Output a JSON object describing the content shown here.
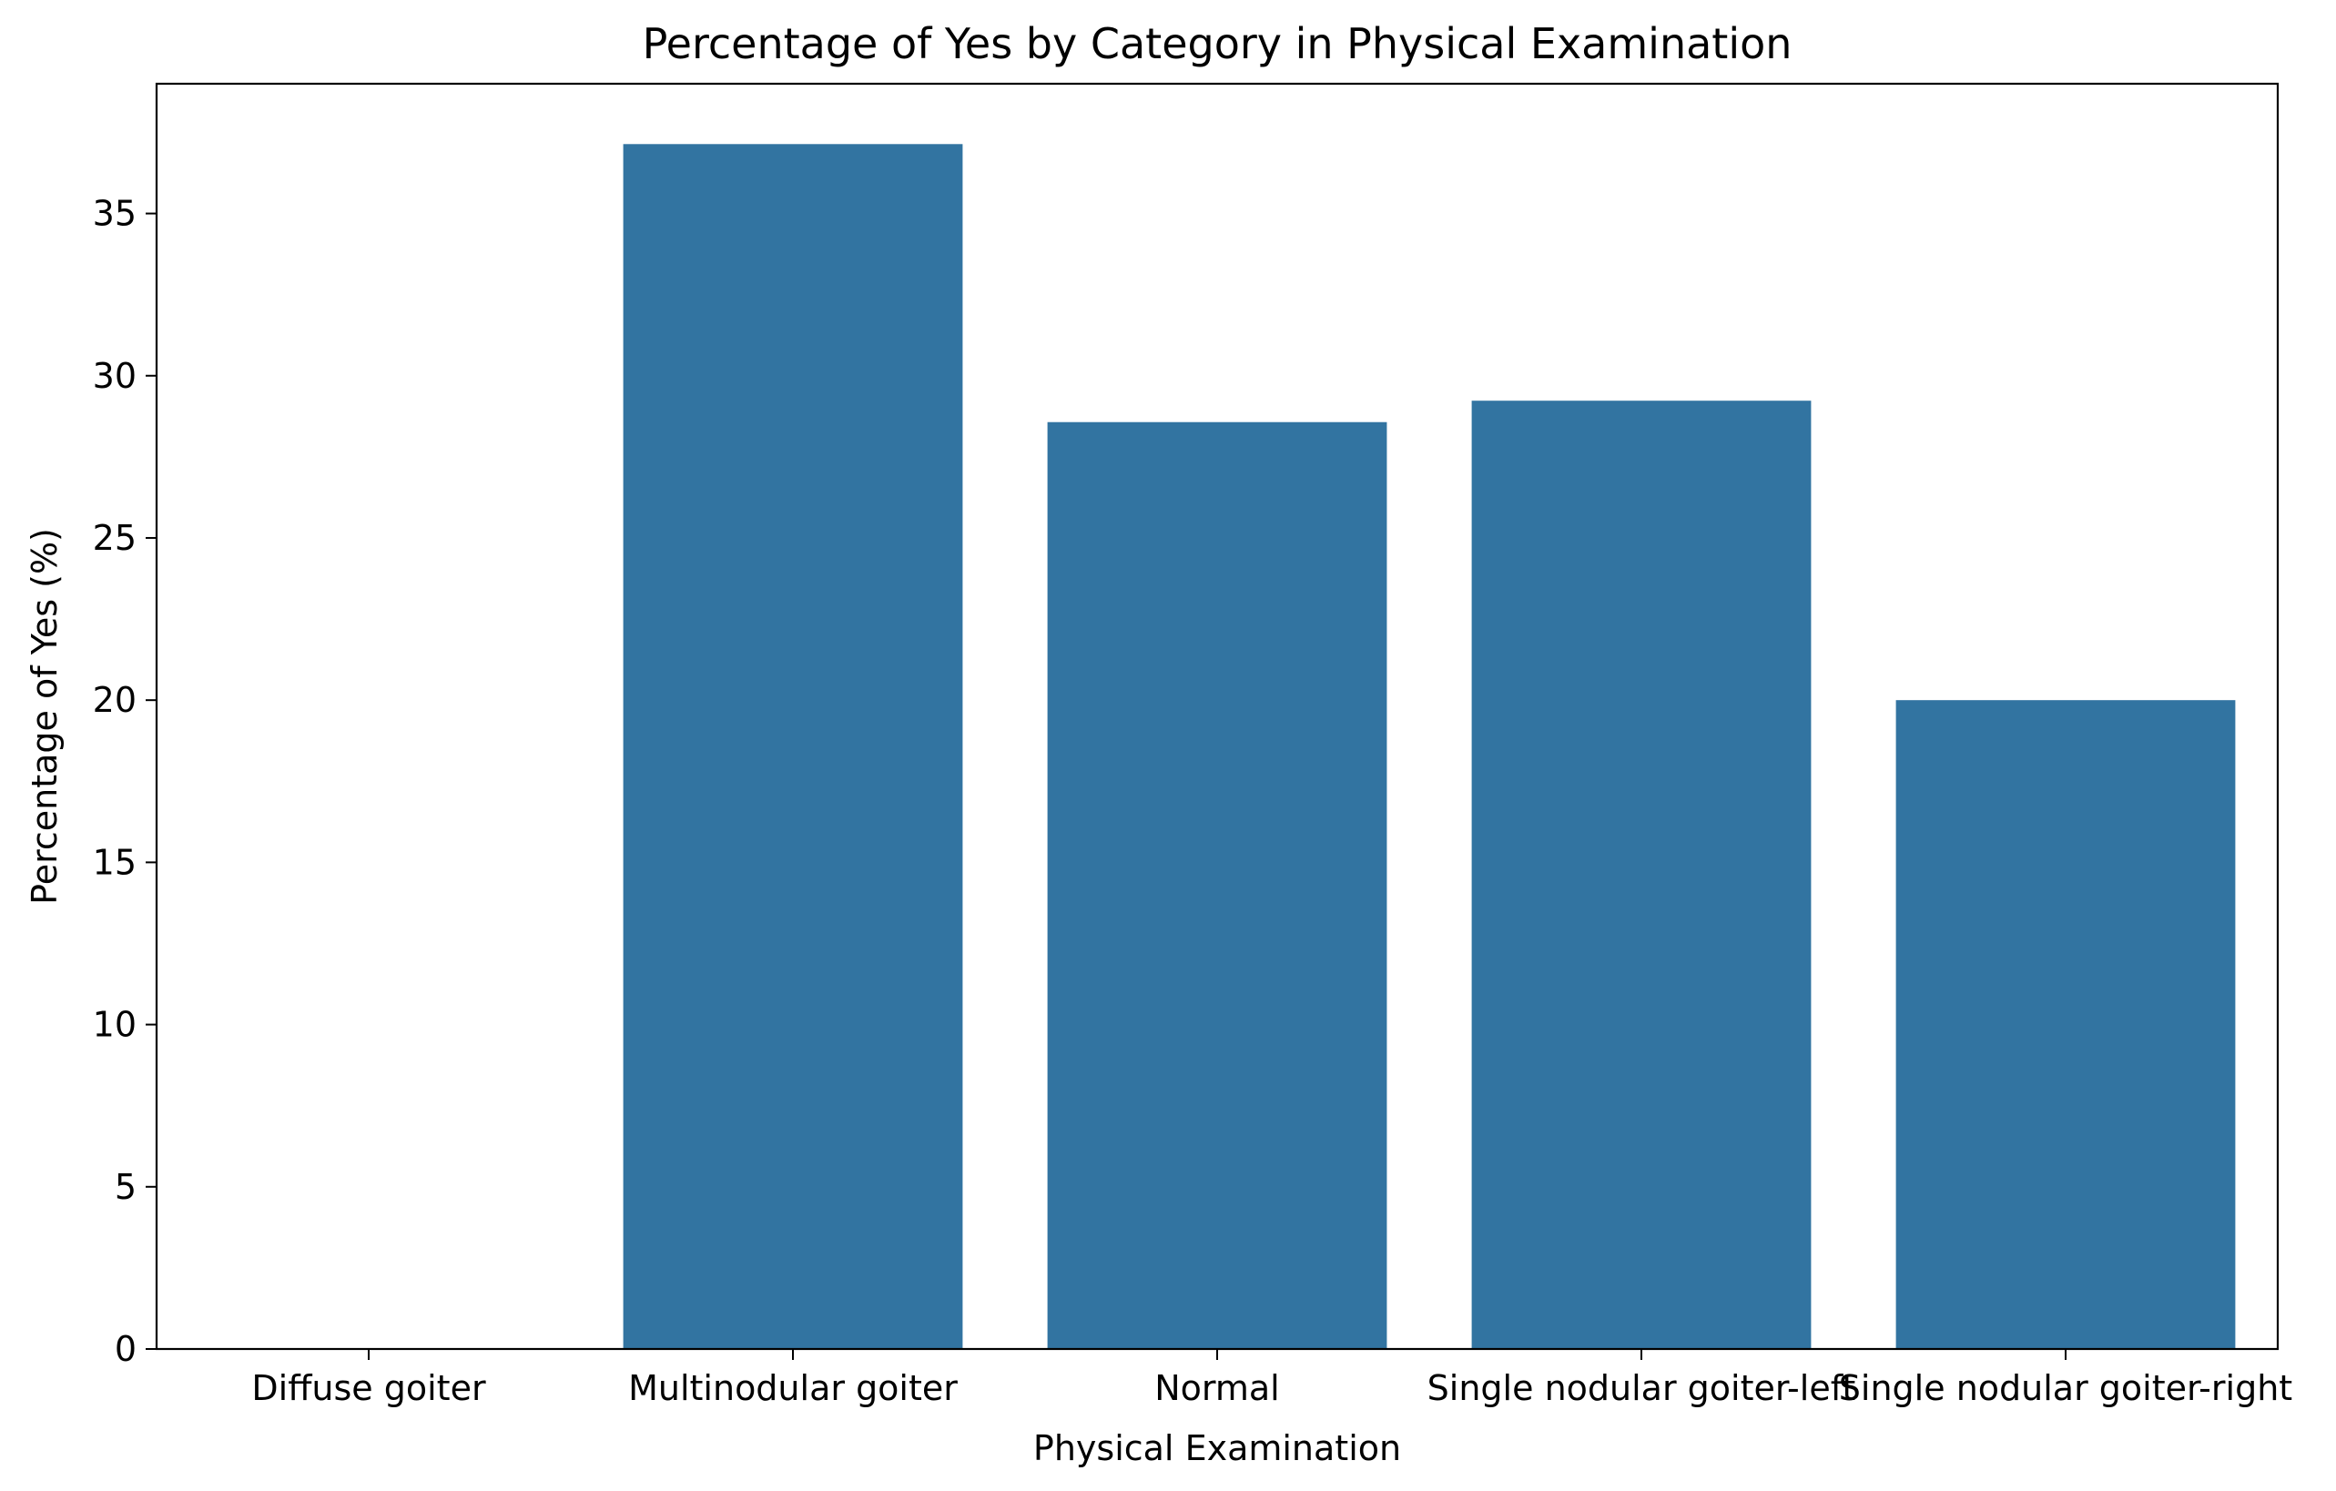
{
  "chart_data": {
    "type": "bar",
    "title": "Percentage of Yes by Category in Physical Examination",
    "xlabel": "Physical Examination",
    "ylabel": "Percentage of Yes (%)",
    "categories": [
      "Diffuse goiter",
      "Multinodular goiter",
      "Normal",
      "Single nodular goiter-left",
      "Single nodular goiter-right"
    ],
    "values": [
      0,
      37.14,
      28.57,
      29.23,
      20.0
    ],
    "ylim": [
      0,
      39
    ],
    "yticks": [
      0,
      5,
      10,
      15,
      20,
      25,
      30,
      35
    ],
    "ytick_labels": [
      "0",
      "5",
      "10",
      "15",
      "20",
      "25",
      "30",
      "35"
    ],
    "grid": false,
    "bar_color": "#3274a1"
  }
}
